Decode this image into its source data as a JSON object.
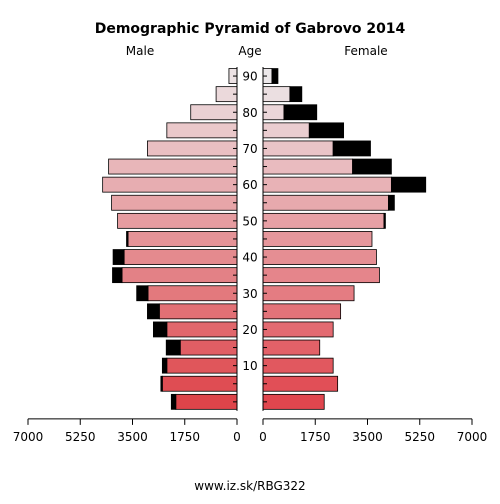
{
  "chart_data": {
    "type": "population-pyramid",
    "title": "Demographic Pyramid of Gabrovo 2014",
    "left_label": "Male",
    "center_label": "Age",
    "right_label": "Female",
    "footer": "www.iz.sk/RBG322",
    "x_ticks_left": [
      "7000",
      "5250",
      "3500",
      "1750",
      "0"
    ],
    "x_tick_values_left": [
      7000,
      5250,
      3500,
      1750,
      0
    ],
    "x_ticks_right": [
      "0",
      "1750",
      "3500",
      "5250",
      "7000"
    ],
    "x_tick_values_right": [
      0,
      1750,
      3500,
      5250,
      7000
    ],
    "xlim": [
      0,
      7000
    ],
    "age_ticks": [
      10,
      20,
      30,
      40,
      50,
      60,
      70,
      80,
      90
    ],
    "age_groups": [
      "0-4",
      "5-9",
      "10-14",
      "15-19",
      "20-24",
      "25-29",
      "30-34",
      "35-39",
      "40-44",
      "45-49",
      "50-54",
      "55-59",
      "60-64",
      "65-69",
      "70-74",
      "75-79",
      "80-84",
      "85-89",
      "90+"
    ],
    "male_base": [
      2050,
      2500,
      2350,
      1900,
      2350,
      2600,
      2980,
      3850,
      3780,
      3650,
      4000,
      4200,
      4500,
      4300,
      3000,
      2350,
      1550,
      700,
      270
    ],
    "male_excess": [
      150,
      50,
      150,
      470,
      450,
      400,
      380,
      320,
      370,
      50,
      0,
      0,
      0,
      0,
      0,
      0,
      0,
      0,
      0
    ],
    "female_base": [
      2050,
      2500,
      2350,
      1900,
      2350,
      2600,
      3050,
      3900,
      3800,
      3650,
      4050,
      4200,
      4300,
      3000,
      2350,
      1550,
      700,
      900,
      300
    ],
    "female_excess": [
      0,
      0,
      0,
      0,
      0,
      0,
      0,
      0,
      0,
      0,
      50,
      200,
      1150,
      1300,
      1250,
      1150,
      1100,
      400,
      200
    ]
  }
}
